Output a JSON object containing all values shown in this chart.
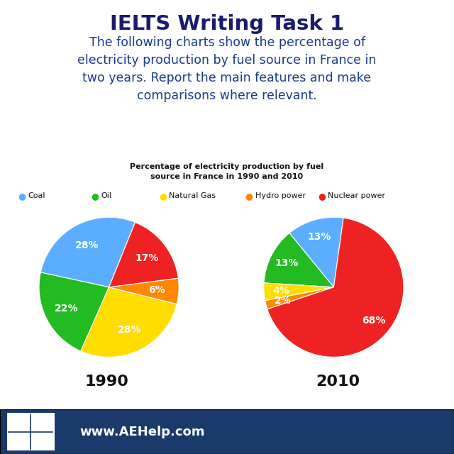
{
  "title": "IELTS Writing Task 1",
  "subtitle": "The following charts show the percentage of\nelectricity production by fuel source in France in\ntwo years. Report the main features and make\ncomparisons where relevant.",
  "chart_title": "Percentage of electricity production by fuel\nsource in France in 1990 and 2010",
  "legend_labels": [
    "Coal",
    "Oil",
    "Natural Gas",
    "Hydro power",
    "Nuclear power"
  ],
  "legend_colors": [
    "#5badff",
    "#22bb22",
    "#ffdd00",
    "#ff8800",
    "#ee2222"
  ],
  "year1": "1990",
  "year2": "2010",
  "data_1990": [
    28,
    22,
    28,
    6,
    17
  ],
  "data_2010": [
    13,
    13,
    4,
    2,
    67
  ],
  "colors": [
    "#5badff",
    "#22bb22",
    "#ffdd00",
    "#ff8800",
    "#ee2222"
  ],
  "footer_bg": "#1a3a6b",
  "footer_text": "www.AEHelp.com",
  "bg_color": "#ffffff",
  "title_color": "#1a1a6e",
  "subtitle_color": "#1a3a8f"
}
